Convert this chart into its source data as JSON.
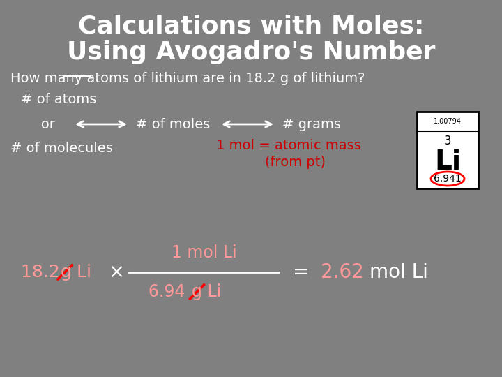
{
  "title_line1": "Calculations with Moles:",
  "title_line2": "Using Avogadro's Number",
  "bg_color": "#808080",
  "title_color": "#ffffff",
  "text_color": "#ffffff",
  "red_color": "#cc0000",
  "pink_color": "#ff9999",
  "question": "How many atoms of lithium are in 18.2 g of lithium?",
  "atoms_underline": "atoms",
  "line1_left": "# of atoms",
  "line2_left": "   or",
  "line2_mid": "# of moles",
  "line2_right": "# grams",
  "line3_left": "# of molecules",
  "line3_mid": "1 mol = atomic mass",
  "line3_mid2": "(from pt)",
  "calc_left": "18.2 g Li",
  "calc_numerator": "1 mol Li",
  "calc_denominator": "6.94 g Li",
  "calc_equals": "=",
  "calc_result": "2.62",
  "calc_unit": "mol Li"
}
